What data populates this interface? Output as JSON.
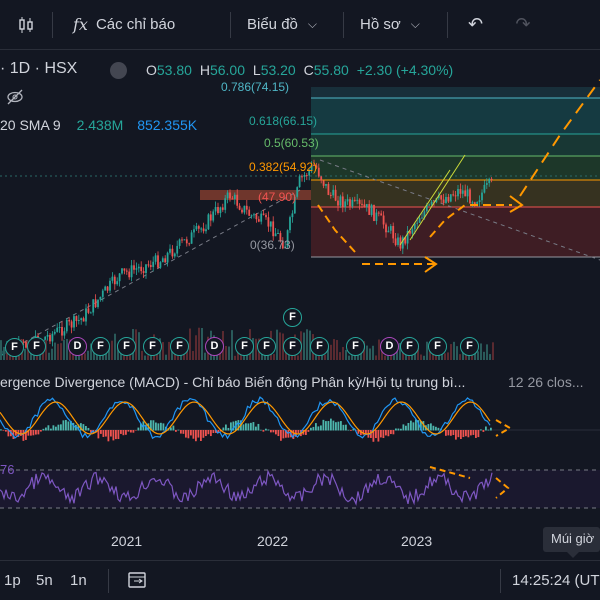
{
  "toolbar": {
    "indicators_label": "Các chỉ báo",
    "chart_label": "Biểu đồ",
    "profile_label": "Hồ sơ",
    "icons": [
      "candles-icon",
      "fx-icon",
      "undo-icon",
      "redo-icon"
    ]
  },
  "legend": {
    "symbol": "· 1D · HSX",
    "open_k": "O",
    "open_v": "53.80",
    "high_k": "H",
    "high_v": "56.00",
    "low_k": "L",
    "low_v": "53.20",
    "close_k": "C",
    "close_v": "55.80",
    "change": "+2.30 (+4.30%)",
    "sma_label": "20 SMA 9",
    "sma_v1": "2.438M",
    "sma_v2": "852.355K"
  },
  "fib_levels": [
    {
      "label": "0.786(74.15)",
      "color": "#4fb6c6"
    },
    {
      "label": "0.618(66.15)",
      "color": "#26a69a"
    },
    {
      "label": "0.5(60.53)",
      "color": "#66bb6a"
    },
    {
      "label": "0.382(54.92)",
      "color": "#ff9800"
    },
    {
      "label": "(47.90)",
      "color": "#ef5350"
    },
    {
      "label": "0(36.73)",
      "color": "#9598a1"
    }
  ],
  "macd_title": "ergence Divergence (MACD) - Chỉ báo Biến động Phân kỳ/Hội tụ trung bì...",
  "macd_params": "12 26 clos...",
  "rsi_value": "76",
  "xaxis": {
    "ticks": [
      "2021",
      "2022",
      "2023"
    ]
  },
  "tooltip": "Múi giờ",
  "bottom": {
    "ranges": [
      "1p",
      "5n",
      "1n"
    ],
    "time": "14:25:24 (UT"
  },
  "colors": {
    "up": "#26a69a",
    "down": "#ef5350",
    "accent": "#ff9800",
    "rsi": "#7e57c2"
  }
}
